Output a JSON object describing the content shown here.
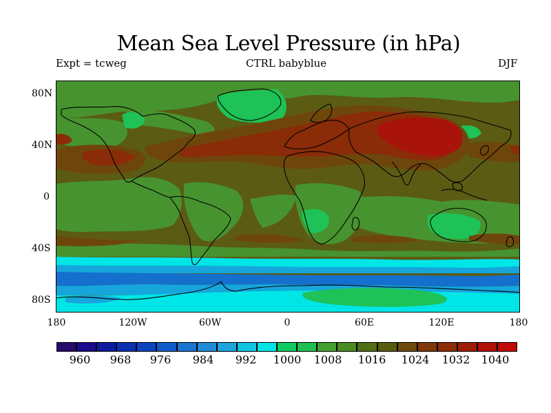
{
  "title": "Mean Sea Level Pressure (in hPa)",
  "subtitle_left": "Expt = tcweg",
  "subtitle_center": "CTRL babyblue",
  "subtitle_right": "DJF",
  "lat_labels": [
    "80N",
    "40N",
    "0",
    "40S",
    "80S"
  ],
  "lon_labels": [
    "180",
    "120W",
    "60W",
    "0",
    "60E",
    "120E",
    "180"
  ],
  "colorbar": {
    "labels": [
      "960",
      "968",
      "976",
      "984",
      "992",
      "1000",
      "1008",
      "1016",
      "1024",
      "1032",
      "1040"
    ],
    "colors": [
      "#2a0a6e",
      "#1b0a8a",
      "#0c1a9e",
      "#0a2fb0",
      "#0c44c0",
      "#0f5cc8",
      "#1a74d0",
      "#1f8ad6",
      "#1ea4dc",
      "#10c4e4",
      "#00e4e8",
      "#10cc60",
      "#20c050",
      "#43a030",
      "#4a8c22",
      "#506e14",
      "#585c10",
      "#6c4a0c",
      "#80380a",
      "#8e2c08",
      "#9e1c06",
      "#b01006",
      "#c00a08"
    ]
  },
  "colors": {
    "base": "#5b5b14",
    "green": "#47932f",
    "bright_green": "#1ec256",
    "orange": "#6e460c",
    "red": "#8a2c08",
    "dark_red": "#a8140a",
    "cyan": "#00e6e6",
    "light_blue": "#16a6dc",
    "blue": "#1470cc",
    "coast": "#000000"
  }
}
